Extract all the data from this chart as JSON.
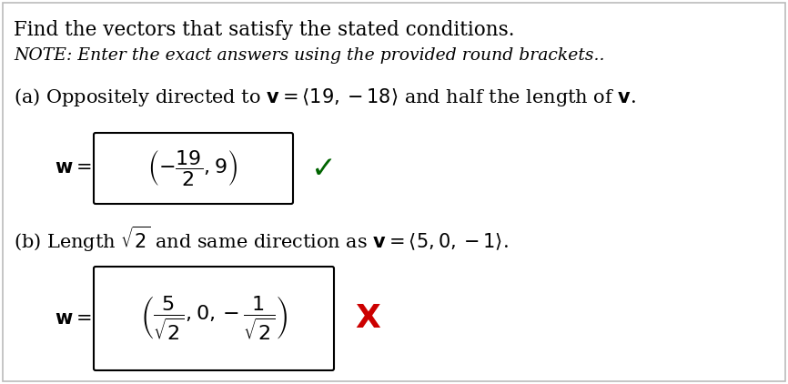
{
  "title": "Find the vectors that satisfy the stated conditions.",
  "note": "NOTE: Enter the exact answers using the provided round brackets..",
  "check_color": "#006400",
  "cross_color": "#cc0000",
  "box_color": "#000000",
  "bg_color": "#ffffff",
  "text_color": "#000000",
  "border_color": "#bbbbbb"
}
